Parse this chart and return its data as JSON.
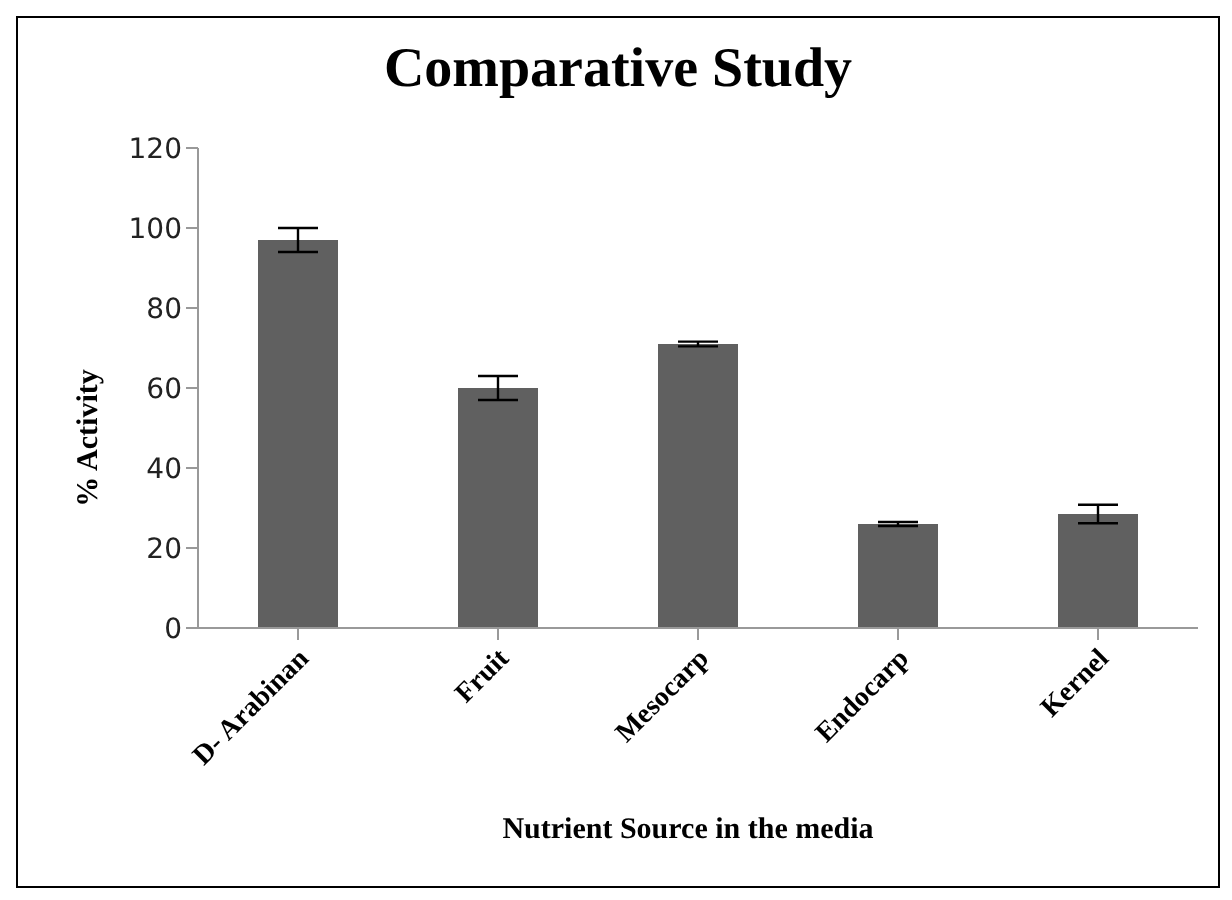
{
  "chart_data": {
    "type": "bar",
    "title": "Comparative Study",
    "xlabel": "Nutrient Source in the media",
    "ylabel": "% Activity",
    "categories": [
      "D- Arabinan",
      "Fruit",
      "Mesocarp",
      "Endocarp",
      "Kernel"
    ],
    "values": [
      97,
      60,
      71,
      26,
      28.5
    ],
    "errors": [
      3,
      3,
      0.6,
      0.5,
      2.3
    ],
    "color": "#606060",
    "ylim": [
      0,
      120
    ],
    "yticks": [
      0,
      20,
      40,
      60,
      80,
      100,
      120
    ],
    "grid": false,
    "legend": false
  }
}
